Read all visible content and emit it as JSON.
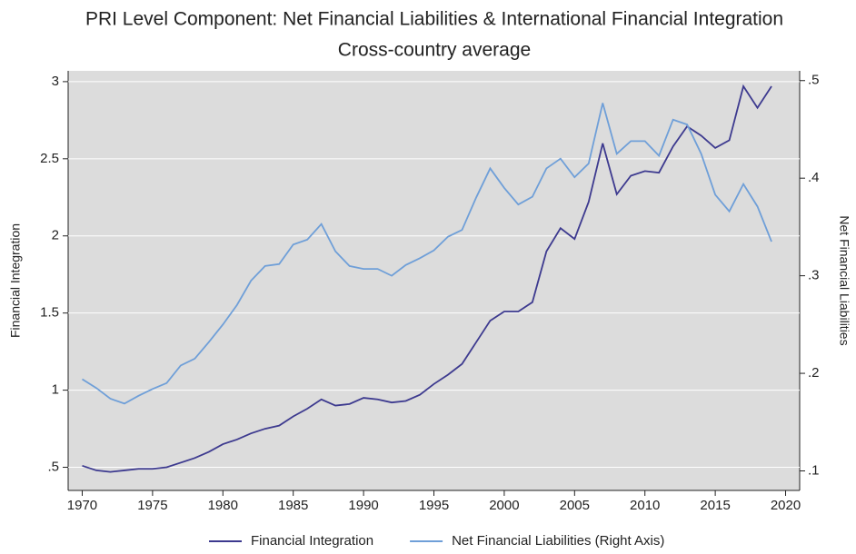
{
  "chart_data": {
    "type": "line",
    "title": "PRI Level Component: Net Financial Liabilities & International Financial Integration",
    "subtitle": "Cross-country average",
    "y_label": "Financial Integration",
    "y2_label": "Net Financial Liabilities",
    "x": [
      1970,
      1971,
      1972,
      1973,
      1974,
      1975,
      1976,
      1977,
      1978,
      1979,
      1980,
      1981,
      1982,
      1983,
      1984,
      1985,
      1986,
      1987,
      1988,
      1989,
      1990,
      1991,
      1992,
      1993,
      1994,
      1995,
      1996,
      1997,
      1998,
      1999,
      2000,
      2001,
      2002,
      2003,
      2004,
      2005,
      2006,
      2007,
      2008,
      2009,
      2010,
      2011,
      2012,
      2013,
      2014,
      2015,
      2016,
      2017,
      2018,
      2019
    ],
    "series": [
      {
        "name": "Financial Integration",
        "color": "#3d3a8f",
        "values": [
          0.51,
          0.48,
          0.47,
          0.48,
          0.49,
          0.49,
          0.5,
          0.53,
          0.56,
          0.6,
          0.65,
          0.68,
          0.72,
          0.75,
          0.77,
          0.83,
          0.88,
          0.94,
          0.9,
          0.91,
          0.95,
          0.94,
          0.92,
          0.93,
          0.97,
          1.04,
          1.1,
          1.17,
          1.31,
          1.45,
          1.51,
          1.51,
          1.57,
          1.9,
          2.05,
          1.98,
          2.22,
          2.6,
          2.27,
          2.39,
          2.42,
          2.41,
          2.58,
          2.71,
          2.65,
          2.57,
          2.62,
          2.97,
          2.83,
          2.97
        ]
      },
      {
        "name": "Net Financial Liabilities (Right Axis)",
        "color": "#6f9fd8",
        "axis": "y2",
        "values": [
          0.194,
          0.185,
          0.174,
          0.169,
          0.177,
          0.184,
          0.19,
          0.208,
          0.215,
          0.232,
          0.25,
          0.27,
          0.295,
          0.31,
          0.312,
          0.332,
          0.337,
          0.353,
          0.325,
          0.31,
          0.307,
          0.307,
          0.3,
          0.311,
          0.318,
          0.326,
          0.34,
          0.347,
          0.38,
          0.41,
          0.39,
          0.373,
          0.381,
          0.41,
          0.42,
          0.401,
          0.415,
          0.477,
          0.425,
          0.438,
          0.438,
          0.423,
          0.46,
          0.455,
          0.425,
          0.383,
          0.366,
          0.394,
          0.371,
          0.335
        ]
      }
    ],
    "xlim": [
      1969,
      2021
    ],
    "xticks": [
      1970,
      1975,
      1980,
      1985,
      1990,
      1995,
      2000,
      2005,
      2010,
      2015,
      2020
    ],
    "ylim": [
      0.35,
      3.07
    ],
    "yticks": [
      {
        "value": 0.5,
        "label": ".5"
      },
      1,
      1.5,
      2,
      2.5,
      3
    ],
    "y2lim": [
      0.08,
      0.51
    ],
    "y2ticks": [
      {
        "value": 0.1,
        "label": ".1"
      },
      {
        "value": 0.2,
        "label": ".2"
      },
      {
        "value": 0.3,
        "label": ".3"
      },
      {
        "value": 0.4,
        "label": ".4"
      },
      {
        "value": 0.5,
        "label": ".5"
      }
    ],
    "grid": true,
    "legend": "bottom"
  }
}
